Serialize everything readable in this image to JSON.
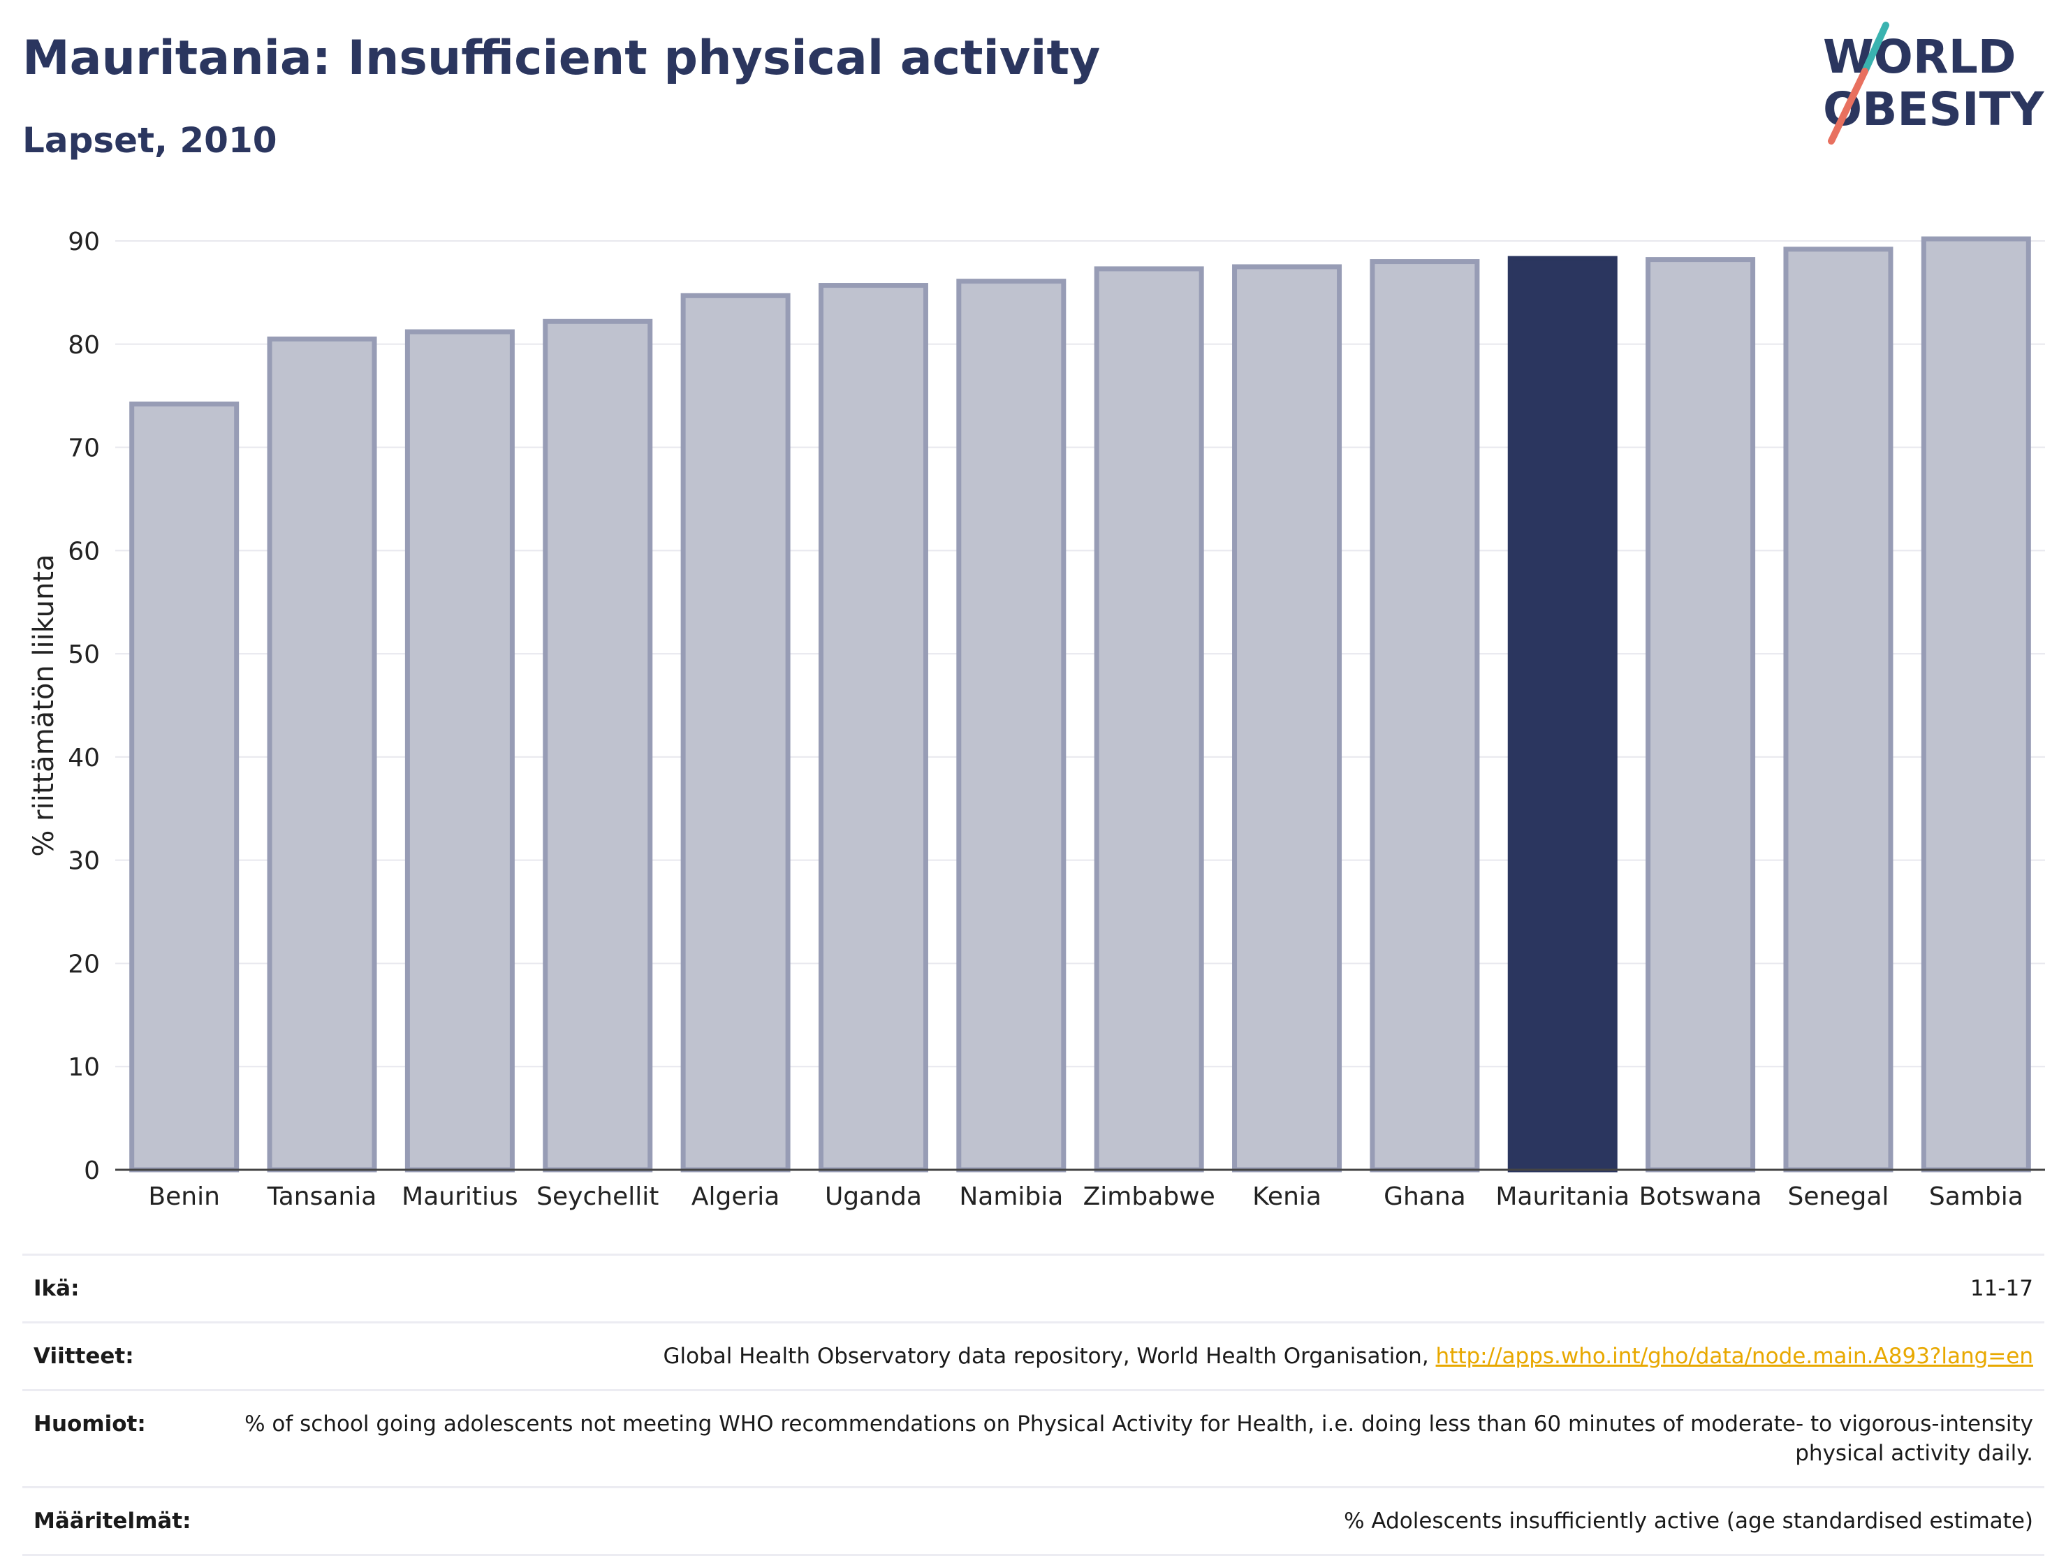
{
  "header": {
    "title": "Mauritania: Insufficient physical activity",
    "subtitle": "Lapset, 2010"
  },
  "logo": {
    "line1": "WORLD",
    "line2": "OBESITY",
    "colors": {
      "navy": "#2b365f",
      "teal": "#3ab3b0",
      "coral": "#e8705f"
    }
  },
  "colors": {
    "bar": "#bfc2cf",
    "bar_stroke": "#979cb5",
    "highlight": "#2b365f",
    "grid": "#e8e8ee",
    "axis": "#444444"
  },
  "chart_data": {
    "type": "bar",
    "title": "Mauritania: Insufficient physical activity",
    "subtitle": "Lapset, 2010",
    "ylabel": "% riittämätön liikunta",
    "xlabel": "",
    "ylim": [
      0,
      90
    ],
    "yticks": [
      0,
      10,
      20,
      30,
      40,
      50,
      60,
      70,
      80,
      90
    ],
    "grid": true,
    "highlight": "Mauritania",
    "categories": [
      "Benin",
      "Tansania",
      "Mauritius",
      "Seychellit",
      "Algeria",
      "Uganda",
      "Namibia",
      "Zimbabwe",
      "Kenia",
      "Ghana",
      "Mauritania",
      "Botswana",
      "Senegal",
      "Sambia"
    ],
    "values": [
      74.2,
      80.5,
      81.2,
      82.2,
      84.7,
      85.7,
      86.1,
      87.3,
      87.5,
      88.0,
      88.3,
      88.2,
      89.2,
      90.2
    ]
  },
  "meta": [
    {
      "key": "Ikä:",
      "value": "11-17"
    },
    {
      "key": "Viitteet:",
      "value": "Global Health Observatory data repository, World Health Organisation, ",
      "link": "http://apps.who.int/gho/data/node.main.A893?lang=en"
    },
    {
      "key": "Huomiot:",
      "value": "% of school going adolescents not meeting WHO recommendations on Physical Activity for Health, i.e. doing less than 60 minutes of moderate- to vigorous-intensity physical activity daily."
    },
    {
      "key": "Määritelmät:",
      "value": "% Adolescents insufficiently active (age standardised estimate)"
    }
  ]
}
